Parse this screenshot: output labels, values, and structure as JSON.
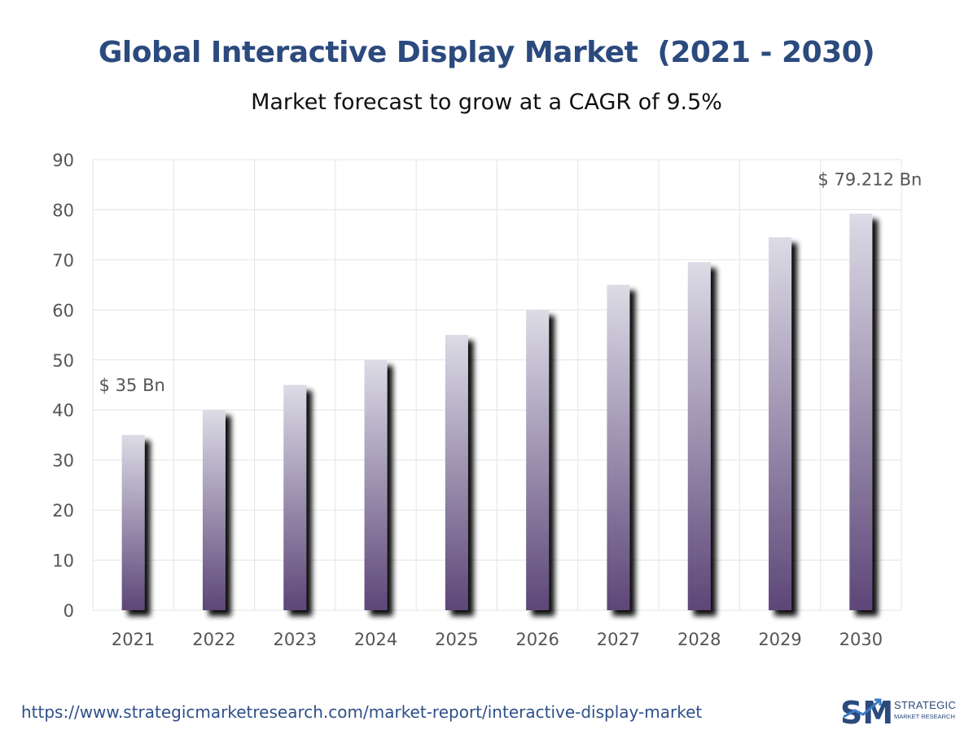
{
  "header": {
    "title": "Global Interactive Display Market  (2021 - 2030)",
    "subtitle": "Market forecast to grow at a CAGR of 9.5%"
  },
  "chart_data": {
    "type": "bar",
    "title": "Global Interactive Display Market  (2021 - 2030)",
    "subtitle": "Market forecast to grow at a CAGR of 9.5%",
    "categories": [
      "2021",
      "2022",
      "2023",
      "2024",
      "2025",
      "2026",
      "2027",
      "2028",
      "2029",
      "2030"
    ],
    "values": [
      35,
      40,
      45,
      50,
      55,
      60,
      65,
      69.5,
      74.5,
      79.212
    ],
    "xlabel": "",
    "ylabel": "",
    "ylim": [
      0,
      90
    ],
    "yticks": [
      "0",
      "10",
      "20",
      "30",
      "40",
      "50",
      "60",
      "70",
      "80",
      "90"
    ],
    "grid": true,
    "legend": "none",
    "annotations": [
      {
        "category": "2021",
        "text": "$ 35 Bn"
      },
      {
        "category": "2030",
        "text": "$ 79.212 Bn"
      }
    ],
    "colors": {
      "bar_top": "#dcdbe6",
      "bar_bottom": "#5d4678",
      "shadow": "#111111",
      "grid": "#e4e4e4"
    }
  },
  "footer": {
    "url": "https://www.strategicmarketresearch.com/market-report/interactive-display-market",
    "logo_mark": "SM",
    "logo_line1": "STRATEGIC",
    "logo_line2": "MARKET RESEARCH"
  }
}
